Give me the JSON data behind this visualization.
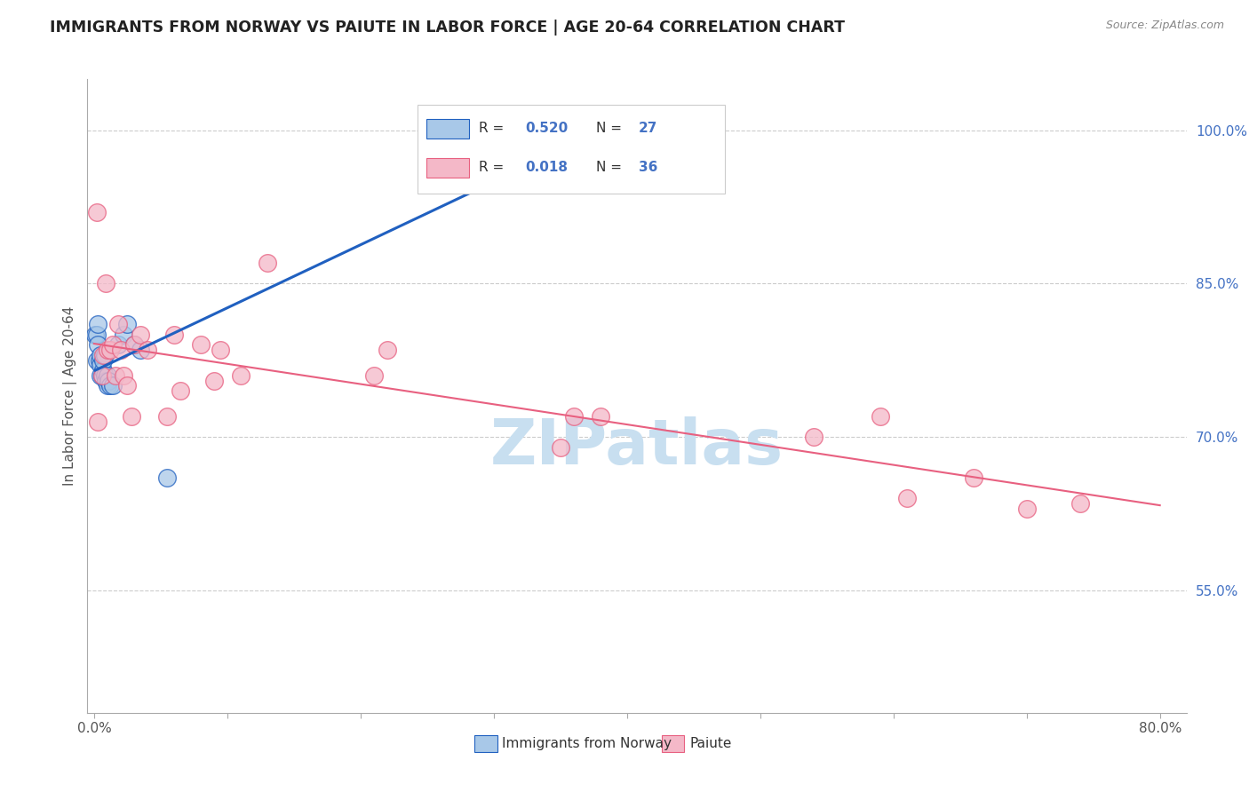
{
  "title": "IMMIGRANTS FROM NORWAY VS PAIUTE IN LABOR FORCE | AGE 20-64 CORRELATION CHART",
  "source": "Source: ZipAtlas.com",
  "ylabel": "In Labor Force | Age 20-64",
  "legend_label1": "Immigrants from Norway",
  "legend_label2": "Paiute",
  "R1": "0.520",
  "N1": "27",
  "R2": "0.018",
  "N2": "36",
  "color_blue": "#a8c8e8",
  "color_pink": "#f4b8c8",
  "color_blue_line": "#2060c0",
  "color_pink_line": "#e86080",
  "color_grid": "#cccccc",
  "ytick_labels": [
    "55.0%",
    "70.0%",
    "85.0%",
    "100.0%"
  ],
  "ytick_values": [
    0.55,
    0.7,
    0.85,
    1.0
  ],
  "xlim": [
    -0.005,
    0.82
  ],
  "ylim": [
    0.43,
    1.05
  ],
  "norway_x": [
    0.001,
    0.002,
    0.002,
    0.003,
    0.003,
    0.004,
    0.005,
    0.005,
    0.005,
    0.006,
    0.007,
    0.007,
    0.008,
    0.008,
    0.009,
    0.01,
    0.01,
    0.011,
    0.012,
    0.014,
    0.018,
    0.022,
    0.025,
    0.03,
    0.035,
    0.055,
    0.35
  ],
  "norway_y": [
    0.8,
    0.775,
    0.8,
    0.79,
    0.81,
    0.775,
    0.77,
    0.78,
    0.76,
    0.76,
    0.765,
    0.775,
    0.78,
    0.76,
    0.755,
    0.75,
    0.76,
    0.755,
    0.75,
    0.75,
    0.79,
    0.8,
    0.81,
    0.79,
    0.785,
    0.66,
    1.0
  ],
  "paiute_x": [
    0.002,
    0.003,
    0.006,
    0.007,
    0.009,
    0.01,
    0.012,
    0.014,
    0.016,
    0.018,
    0.02,
    0.022,
    0.025,
    0.028,
    0.03,
    0.035,
    0.04,
    0.055,
    0.06,
    0.065,
    0.08,
    0.09,
    0.095,
    0.11,
    0.13,
    0.21,
    0.22,
    0.35,
    0.36,
    0.38,
    0.54,
    0.59,
    0.61,
    0.66,
    0.7,
    0.74
  ],
  "paiute_y": [
    0.92,
    0.715,
    0.76,
    0.78,
    0.85,
    0.785,
    0.785,
    0.79,
    0.76,
    0.81,
    0.785,
    0.76,
    0.75,
    0.72,
    0.79,
    0.8,
    0.785,
    0.72,
    0.8,
    0.745,
    0.79,
    0.755,
    0.785,
    0.76,
    0.87,
    0.76,
    0.785,
    0.69,
    0.72,
    0.72,
    0.7,
    0.72,
    0.64,
    0.66,
    0.63,
    0.635
  ],
  "watermark_text": "ZIPatlas",
  "watermark_color": "#c8dff0"
}
